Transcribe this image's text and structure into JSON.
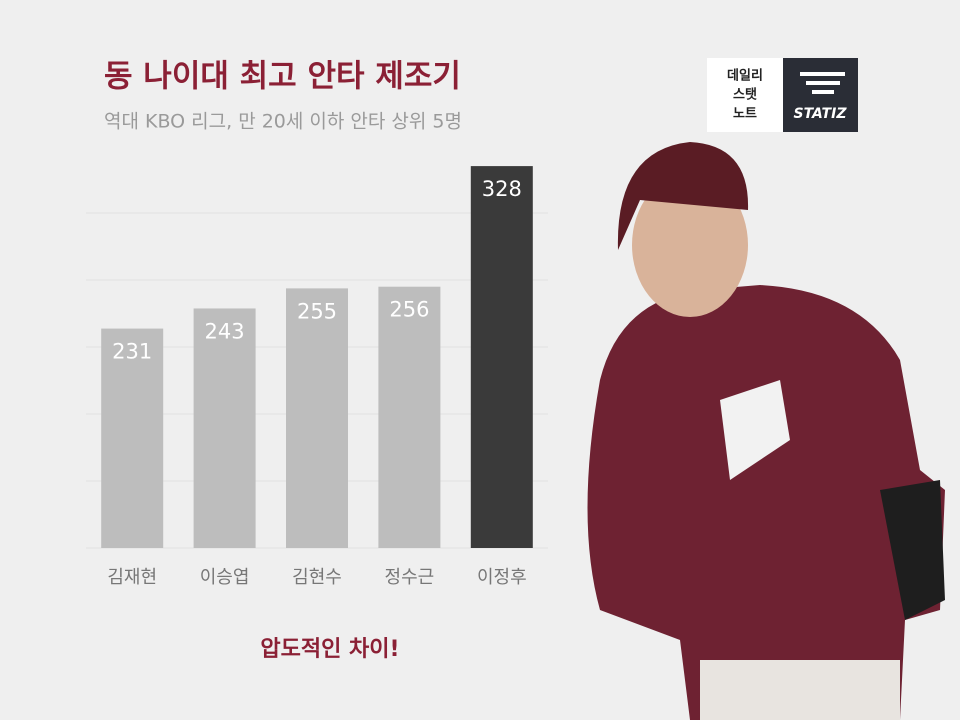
{
  "chart_data": {
    "type": "bar",
    "title": "동 나이대 최고 안타 제조기",
    "subtitle": "역대 KBO 리그, 만 20세 이하 안타 상위 5명",
    "categories": [
      "김재현",
      "이승엽",
      "김현수",
      "정수근",
      "이정후"
    ],
    "values": [
      231,
      243,
      255,
      256,
      328
    ],
    "colors": [
      "#bdbdbd",
      "#bdbdbd",
      "#bdbdbd",
      "#bdbdbd",
      "#3a3a3a"
    ],
    "ylim": [
      100,
      340
    ],
    "yticks": [
      100,
      140,
      180,
      220,
      260,
      300
    ],
    "grid": true,
    "annotation": "압도적인 차이!"
  },
  "logo": {
    "lines": [
      "데일리",
      "스탯",
      "노트"
    ],
    "brand": "STATIZ"
  }
}
